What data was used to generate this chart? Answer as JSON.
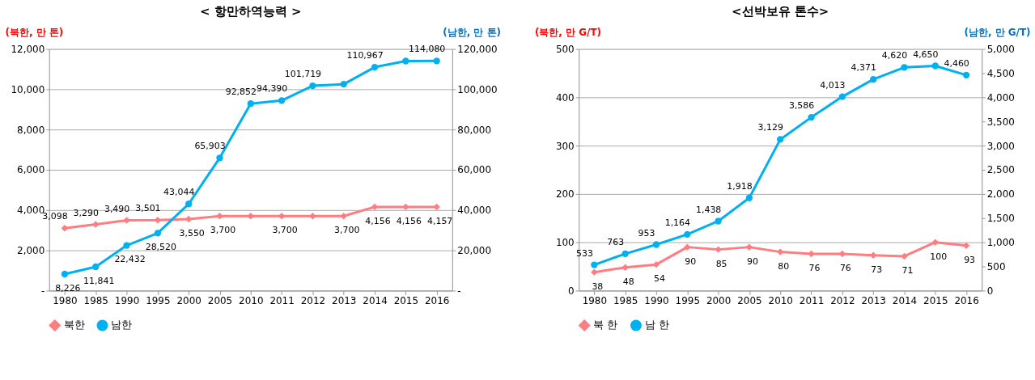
{
  "chart_data": [
    {
      "type": "line",
      "title": "< 항만하역능력 >",
      "ylabel": "(북한, 만 톤)",
      "y2label": "(남한, 만 톤)",
      "categories": [
        "1980",
        "1985",
        "1990",
        "1995",
        "2000",
        "2005",
        "2010",
        "2011",
        "2012",
        "2013",
        "2014",
        "2015",
        "2016"
      ],
      "series": [
        {
          "name": "북한",
          "color": "#ff7c80",
          "marker": "diamond",
          "values": [
            3098,
            3290,
            3490,
            3501,
            3550,
            3700,
            3700,
            3700,
            3700,
            3700,
            4156,
            4156,
            4157
          ],
          "value_labels": [
            "3,098",
            "3,290",
            "3,490",
            "3,501",
            "3,550",
            "3,700",
            null,
            "3,700",
            null,
            "3,700",
            "4,156",
            "4,156",
            "4,157"
          ]
        },
        {
          "name": "남한",
          "color": "#00b0f0",
          "marker": "circle",
          "axis": "y2",
          "values": [
            8226,
            11841,
            22432,
            28520,
            43044,
            65903,
            92852,
            94390,
            101719,
            102500,
            110967,
            114000,
            114080
          ],
          "value_labels": [
            "8,226",
            "11,841",
            "22,432",
            "28,520",
            "43,044",
            "65,903",
            "92,852",
            "94,390",
            "101,719",
            null,
            "110,967",
            null,
            "114,080"
          ]
        }
      ],
      "ylim": [
        0,
        12000
      ],
      "yticks": [
        {
          "value": 0,
          "label": "-"
        },
        {
          "value": 2000,
          "label": "2,000"
        },
        {
          "value": 4000,
          "label": "4,000"
        },
        {
          "value": 6000,
          "label": "6,000"
        },
        {
          "value": 8000,
          "label": "8,000"
        },
        {
          "value": 10000,
          "label": "10,000"
        },
        {
          "value": 12000,
          "label": "12,000"
        }
      ],
      "y2lim": [
        0,
        120000
      ],
      "y2ticks": [
        {
          "value": 0,
          "label": "-"
        },
        {
          "value": 20000,
          "label": "20,000"
        },
        {
          "value": 40000,
          "label": "40,000"
        },
        {
          "value": 60000,
          "label": "60,000"
        },
        {
          "value": 80000,
          "label": "80,000"
        },
        {
          "value": 100000,
          "label": "100,000"
        },
        {
          "value": 120000,
          "label": "120,000"
        }
      ],
      "grid": "y",
      "legend": "bottom"
    },
    {
      "type": "line",
      "title": "<선박보유 톤수>",
      "ylabel": "(북한, 만 G/T)",
      "y2label": "(남한, 만 G/T)",
      "categories": [
        "1980",
        "1985",
        "1990",
        "1995",
        "2000",
        "2005",
        "2010",
        "2011",
        "2012",
        "2013",
        "2014",
        "2015",
        "2016"
      ],
      "series": [
        {
          "name": "북 한",
          "color": "#ff7c80",
          "marker": "diamond",
          "values": [
            38,
            48,
            54,
            90,
            85,
            90,
            80,
            76,
            76,
            73,
            71,
            100,
            93
          ],
          "value_labels": [
            "38",
            "48",
            "54",
            "90",
            "85",
            "90",
            "80",
            "76",
            "76",
            "73",
            "71",
            "100",
            "93"
          ]
        },
        {
          "name": "남 한",
          "color": "#00b0f0",
          "marker": "circle",
          "axis": "y2",
          "values": [
            533,
            763,
            953,
            1164,
            1438,
            1918,
            3129,
            3586,
            4013,
            4371,
            4620,
            4650,
            4460
          ],
          "value_labels": [
            "533",
            "763",
            "953",
            "1,164",
            "1,438",
            "1,918",
            "3,129",
            "3,586",
            "4,013",
            "4,371",
            "4,620",
            "4,650",
            "4,460"
          ]
        }
      ],
      "ylim": [
        0,
        500
      ],
      "yticks": [
        0,
        100,
        200,
        300,
        400,
        500
      ],
      "y2lim": [
        0,
        5000
      ],
      "y2ticks": [
        0,
        500,
        {
          "value": 1000,
          "label": "1,000"
        },
        {
          "value": 1500,
          "label": "1,500"
        },
        {
          "value": 2000,
          "label": "2,000"
        },
        {
          "value": 2500,
          "label": "2,500"
        },
        {
          "value": 3000,
          "label": "3,000"
        },
        {
          "value": 3500,
          "label": "3,500"
        },
        {
          "value": 4000,
          "label": "4,000"
        },
        {
          "value": 4500,
          "label": "4,500"
        },
        {
          "value": 5000,
          "label": "5,000"
        }
      ],
      "grid": "y",
      "legend": "bottom"
    }
  ]
}
